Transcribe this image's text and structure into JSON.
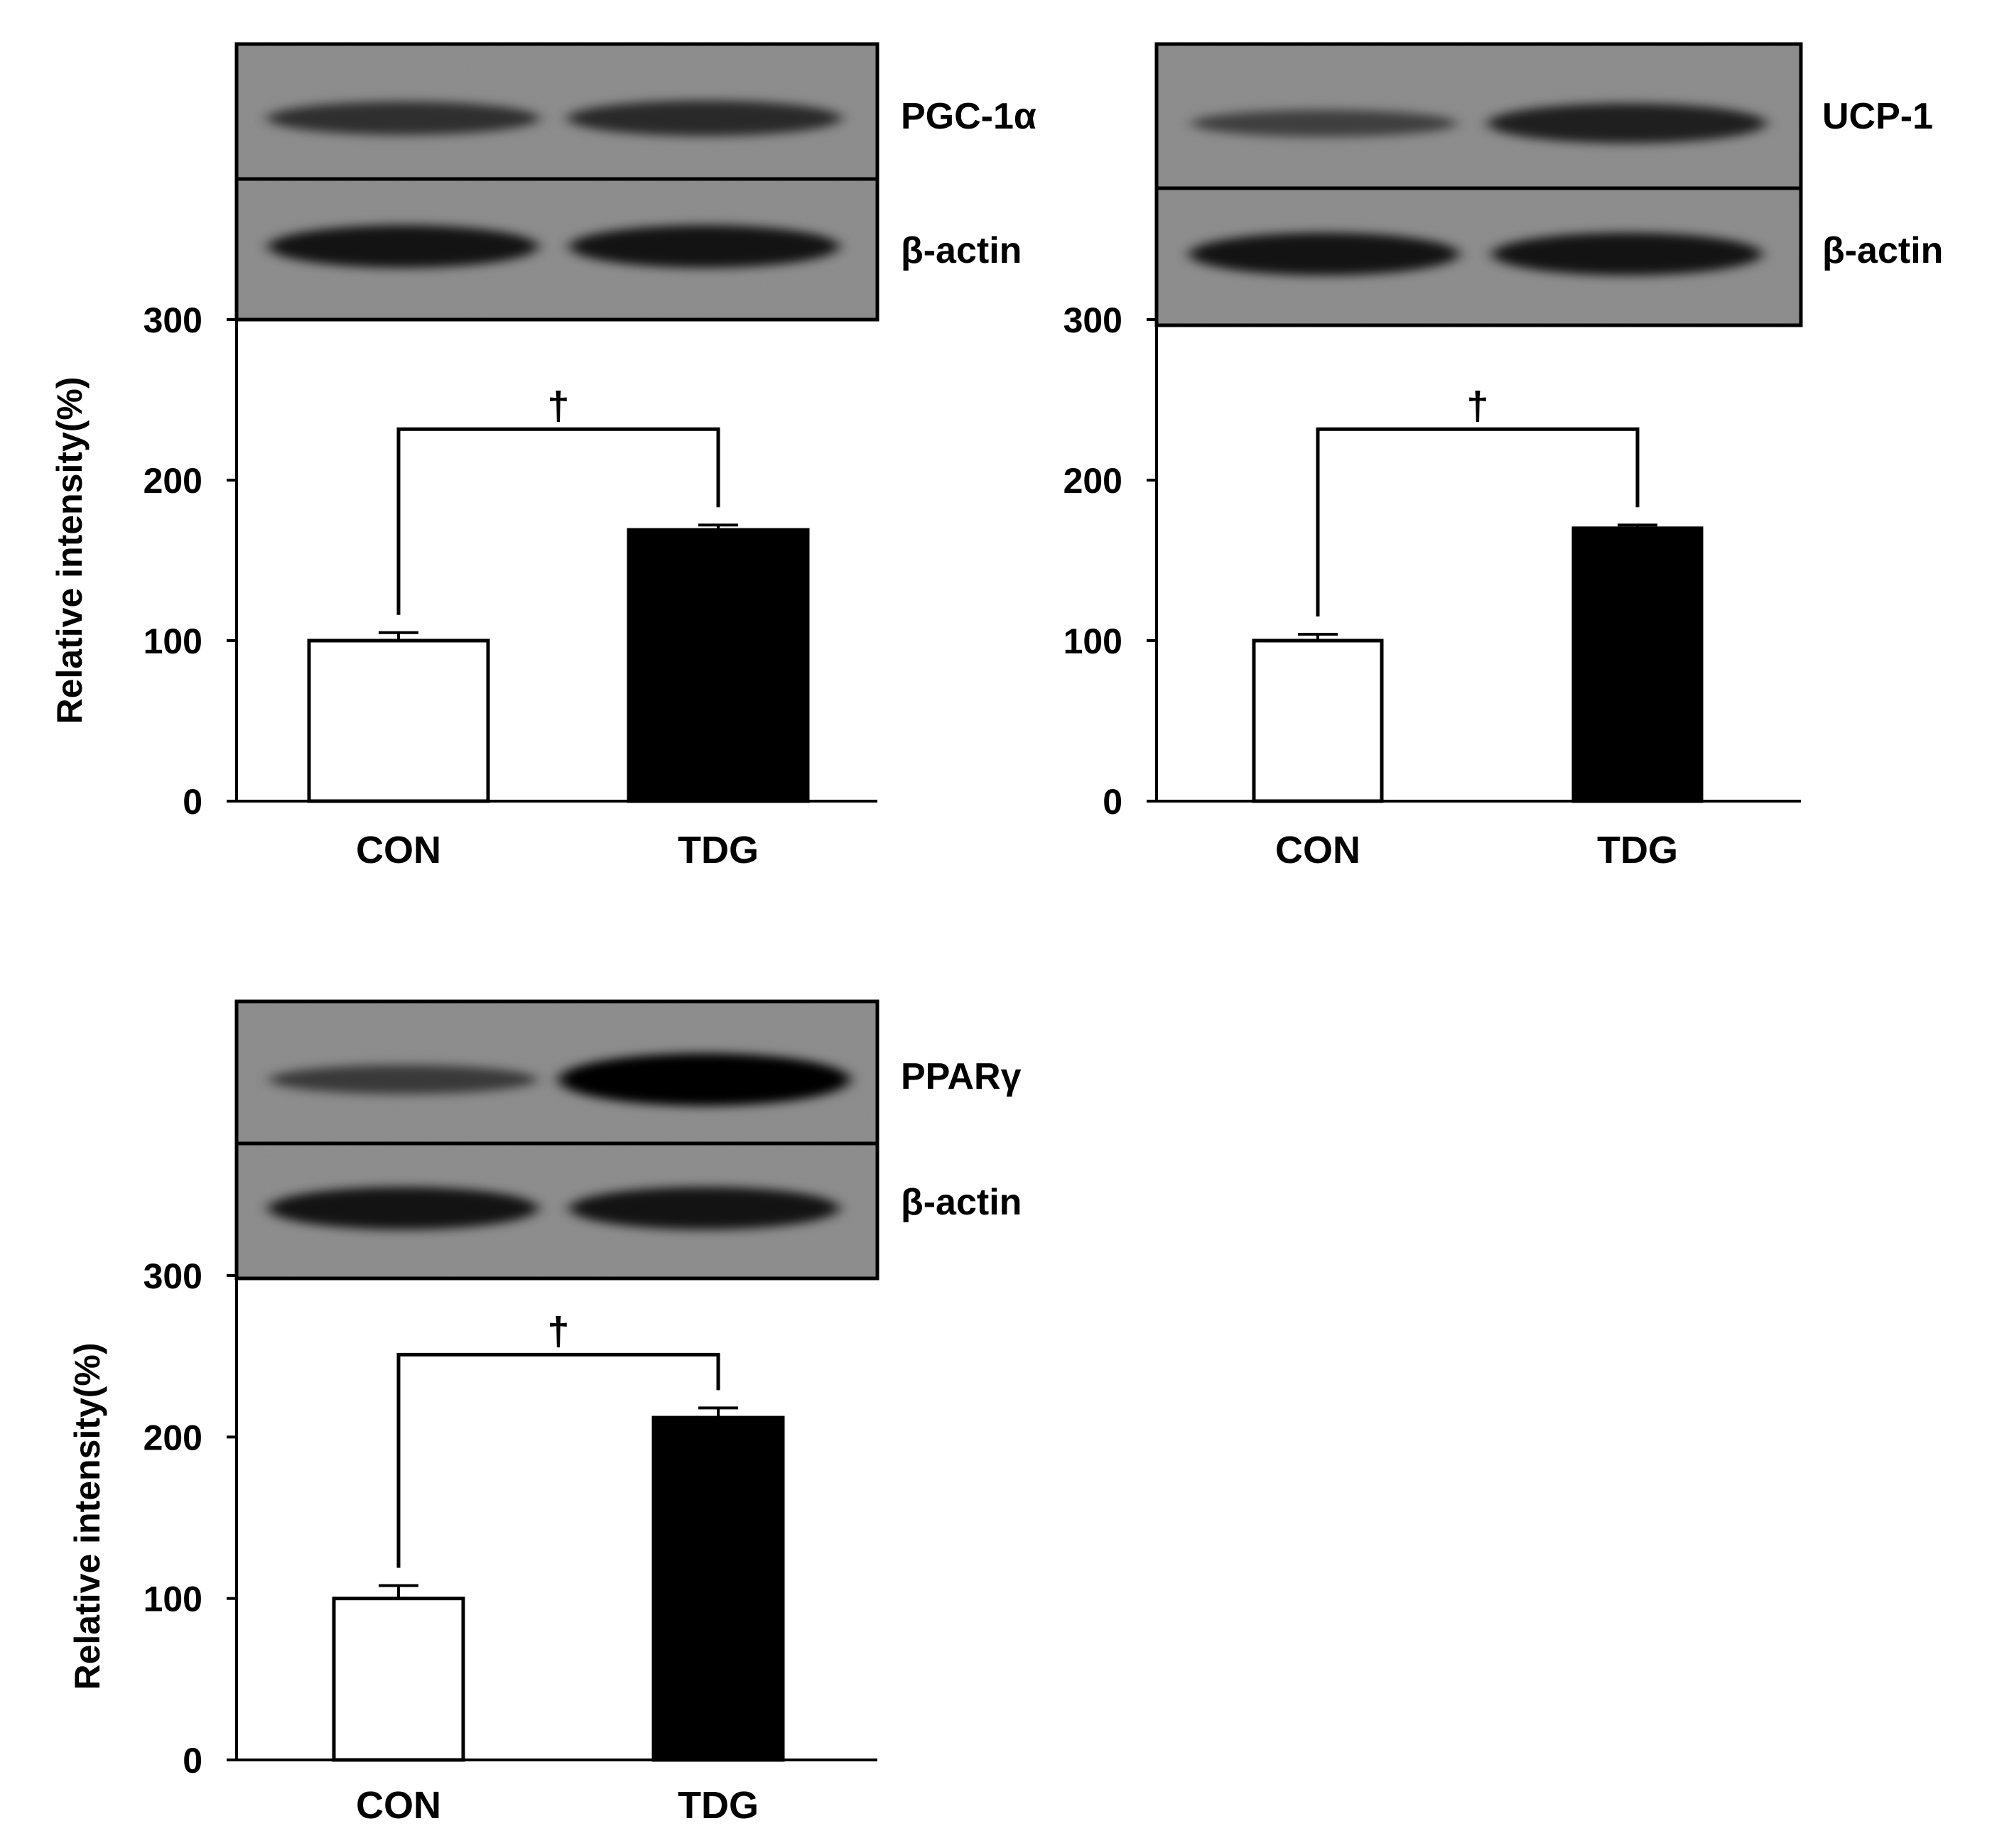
{
  "chart_data": [
    {
      "type": "bar",
      "protein_label": "PGC-1α",
      "loading_control_label": "β-actin",
      "ylabel": "Relative intensity(%)",
      "categories": [
        "CON",
        "TDG"
      ],
      "values": [
        100,
        169
      ],
      "errors": [
        5,
        3
      ],
      "bar_colors": [
        "#ffffff",
        "#000000"
      ],
      "ylim": [
        0,
        300
      ],
      "yticks": [
        "0",
        "100",
        "200",
        "300"
      ],
      "significance": "†",
      "blot_band_intensity": {
        "target": [
          0.55,
          0.6
        ],
        "actin": [
          0.8,
          0.8
        ]
      }
    },
    {
      "type": "bar",
      "protein_label": "UCP-1",
      "loading_control_label": "β-actin",
      "ylabel": "",
      "categories": [
        "CON",
        "TDG"
      ],
      "values": [
        100,
        170
      ],
      "errors": [
        4,
        2
      ],
      "bar_colors": [
        "#ffffff",
        "#000000"
      ],
      "ylim": [
        0,
        300
      ],
      "yticks": [
        "0",
        "100",
        "200",
        "300"
      ],
      "significance": "†",
      "blot_band_intensity": {
        "target": [
          0.4,
          0.7
        ],
        "actin": [
          0.8,
          0.8
        ]
      }
    },
    {
      "type": "bar",
      "protein_label": "PPARγ",
      "loading_control_label": "β-actin",
      "ylabel": "Relative intensity(%)",
      "categories": [
        "CON",
        "TDG"
      ],
      "values": [
        100,
        212
      ],
      "errors": [
        8,
        6
      ],
      "bar_colors": [
        "#ffffff",
        "#000000"
      ],
      "ylim": [
        0,
        300
      ],
      "yticks": [
        "0",
        "100",
        "200",
        "300"
      ],
      "significance": "†",
      "blot_band_intensity": {
        "target": [
          0.45,
          1.0
        ],
        "actin": [
          0.8,
          0.8
        ]
      }
    }
  ]
}
